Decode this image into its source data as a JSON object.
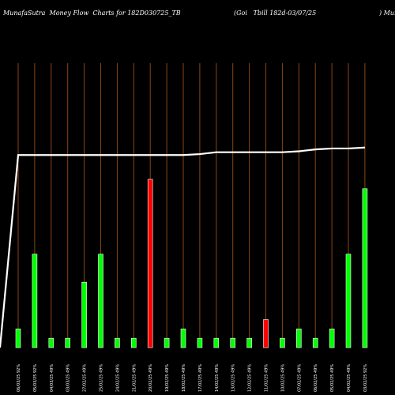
{
  "header": {
    "left_text": "MunafaSutra  Money Flow  Charts for 182D030725_TB",
    "mid_text": "(Goi   Tbill 182d-03/07/25",
    "right_text": ") Munafa"
  },
  "chart_data": {
    "type": "bar",
    "categories": [
      "06/03/25 92%",
      "05/03/25 92%",
      "04/03/25 49%",
      "03/03/25 49%",
      "27/02/25 49%",
      "25/02/25 49%",
      "24/02/25 49%",
      "21/02/25 49%",
      "20/02/25 49%",
      "19/02/25 49%",
      "18/02/25 49%",
      "17/02/25 49%",
      "14/02/25 49%",
      "13/02/25 49%",
      "12/02/25 49%",
      "11/02/25 49%",
      "10/02/25 49%",
      "07/02/25 49%",
      "06/02/25 49%",
      "05/02/25 49%",
      "04/02/25 49%",
      "03/02/25 92%"
    ],
    "values": [
      2,
      10,
      1,
      1,
      7,
      10,
      1,
      1,
      18,
      1,
      2,
      1,
      1,
      1,
      1,
      3,
      1,
      2,
      1,
      2,
      10,
      17
    ],
    "directions": [
      "up",
      "up",
      "up",
      "up",
      "up",
      "up",
      "up",
      "up",
      "down",
      "up",
      "up",
      "up",
      "up",
      "up",
      "up",
      "down",
      "up",
      "up",
      "up",
      "up",
      "up",
      "up"
    ],
    "line_values": [
      20.6,
      20.6,
      20.6,
      20.6,
      20.6,
      20.6,
      20.6,
      20.6,
      20.6,
      20.6,
      20.6,
      20.7,
      20.9,
      20.9,
      20.9,
      20.9,
      20.9,
      21.0,
      21.2,
      21.3,
      21.3,
      21.4
    ],
    "ylim": [
      0,
      30
    ],
    "colors": {
      "up": "#00ff00",
      "down": "#ff0000",
      "line": "#ffffff",
      "grid": "#8b4513",
      "background": "#000000"
    }
  }
}
